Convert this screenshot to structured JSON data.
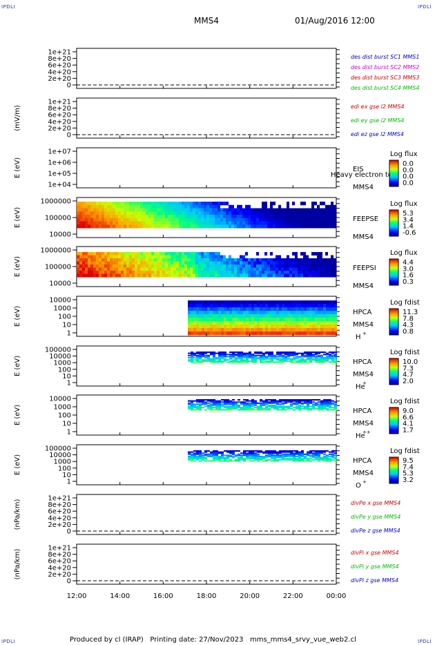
{
  "corners": {
    "tl": "IPDLI",
    "tr": "IPDLI",
    "bl": "IPDLI",
    "br": "IPDLI"
  },
  "header": {
    "title": "MMS4",
    "datetime": "01/Aug/2016 12:00"
  },
  "footer": {
    "text": "Produced by cl (IRAP)   Printing date: 27/Nov/2023   mms_mms4_srvy_vue_web2.cl"
  },
  "x_axis": {
    "ticks": [
      "12:00",
      "14:00",
      "16:00",
      "18:00",
      "20:00",
      "22:00",
      "00:00"
    ]
  },
  "chart_data": [
    {
      "type": "line",
      "panel": "des-dist",
      "ylabel": "",
      "yticks": [
        "1e+21",
        "8e+20",
        "6e+20",
        "4e+20",
        "2e+20",
        "0"
      ],
      "ylim": [
        0,
        1e+21
      ],
      "series": [
        {
          "name": "des dist burst SC1 MMS1",
          "color": "#0000cc"
        },
        {
          "name": "des dist burst SC2 MMS2",
          "color": "#cc00cc"
        },
        {
          "name": "des dist burst SC3 MMS3",
          "color": "#cc0000"
        },
        {
          "name": "des dist burst SC4 MMS4",
          "color": "#00bb00"
        }
      ]
    },
    {
      "type": "line",
      "panel": "edi",
      "ylabel": "(mV/m)",
      "yticks": [
        "1e+21",
        "8e+20",
        "6e+20",
        "4e+20",
        "2e+20",
        "0"
      ],
      "ylim": [
        0,
        1e+21
      ],
      "series": [
        {
          "name": "edi ex gse l2 MMS4",
          "color": "#cc0000"
        },
        {
          "name": "edi ey gse l2 MMS4",
          "color": "#00bb00"
        },
        {
          "name": "edi ez gse l2 MMS4",
          "color": "#0000cc"
        }
      ]
    },
    {
      "type": "heatmap",
      "panel": "eis",
      "ylabel": "E (eV)",
      "yticks": [
        "1e+07",
        "1e+06",
        "1e+05",
        "1e+04"
      ],
      "label": "EIS",
      "sublabel": "MMS4",
      "overlay": "Heavy electron to",
      "colorbar": {
        "title": "Log flux",
        "ticks": [
          "0.0",
          "0.0",
          "0.0",
          "0.0"
        ]
      }
    },
    {
      "type": "heatmap",
      "panel": "feepse",
      "ylabel": "E (eV)",
      "yticks": [
        "1000000",
        "100000",
        "10000"
      ],
      "label": "FEEPSE",
      "sublabel": "MMS4",
      "colorbar": {
        "title": "Log flux",
        "ticks": [
          "5.3",
          "3.4",
          "1.4",
          "-0.6"
        ]
      }
    },
    {
      "type": "heatmap",
      "panel": "feepsi",
      "ylabel": "E (eV)",
      "yticks": [
        "1000000",
        "100000",
        "10000"
      ],
      "label": "FEEPSI",
      "sublabel": "MMS4",
      "colorbar": {
        "title": "Log flux",
        "ticks": [
          "4.4",
          "3.0",
          "1.6",
          "0.3"
        ]
      }
    },
    {
      "type": "heatmap",
      "panel": "hpca-h",
      "ylabel": "E (eV)",
      "yticks": [
        "10000",
        "1000",
        "100",
        "10",
        "1"
      ],
      "label": "HPCA",
      "sublabel": "MMS4",
      "species": "H",
      "charge": "+",
      "colorbar": {
        "title": "Log fdist",
        "ticks": [
          "11.3",
          "7.8",
          "4.3",
          "0.8"
        ]
      }
    },
    {
      "type": "heatmap",
      "panel": "hpca-he",
      "ylabel": "E (eV)",
      "yticks": [
        "100000",
        "10000",
        "1000",
        "100",
        "10",
        "1"
      ],
      "label": "HPCA",
      "sublabel": "MMS4",
      "species": "He",
      "charge": "+",
      "colorbar": {
        "title": "Log fdist",
        "ticks": [
          "10.0",
          "7.3",
          "4.7",
          "2.0"
        ]
      }
    },
    {
      "type": "heatmap",
      "panel": "hpca-he2",
      "ylabel": "E (eV)",
      "yticks": [
        "10000",
        "1000",
        "100",
        "10",
        "1"
      ],
      "label": "HPCA",
      "sublabel": "MMS4",
      "species": "He",
      "charge": "++",
      "colorbar": {
        "title": "Log fdist",
        "ticks": [
          "9.0",
          "6.6",
          "4.1",
          "1.7"
        ]
      }
    },
    {
      "type": "heatmap",
      "panel": "hpca-o",
      "ylabel": "E (eV)",
      "yticks": [
        "100000",
        "10000",
        "1000",
        "100",
        "10",
        "1"
      ],
      "label": "HPCA",
      "sublabel": "MMS4",
      "species": "O",
      "charge": "+",
      "colorbar": {
        "title": "Log fdist",
        "ticks": [
          "9.5",
          "7.4",
          "5.3",
          "3.2"
        ]
      }
    },
    {
      "type": "line",
      "panel": "divpe",
      "ylabel": "(nPa/km)",
      "yticks": [
        "1e+21",
        "8e+20",
        "6e+20",
        "4e+20",
        "2e+20",
        "0"
      ],
      "ylim": [
        0,
        1e+21
      ],
      "series": [
        {
          "name": "divPe x gse MMS4",
          "color": "#cc0000"
        },
        {
          "name": "divPe y gse MMS4",
          "color": "#00bb00"
        },
        {
          "name": "divPe z gse MMS4",
          "color": "#0000cc"
        }
      ]
    },
    {
      "type": "line",
      "panel": "divpi",
      "ylabel": "(nPa/km)",
      "yticks": [
        "1e+21",
        "8e+20",
        "6e+20",
        "4e+20",
        "2e+20",
        "0"
      ],
      "ylim": [
        0,
        1e+21
      ],
      "series": [
        {
          "name": "divPi x gse MMS4",
          "color": "#cc0000"
        },
        {
          "name": "divPi y gse MMS4",
          "color": "#00bb00"
        },
        {
          "name": "divPi z gse MMS4",
          "color": "#0000cc"
        }
      ]
    }
  ]
}
